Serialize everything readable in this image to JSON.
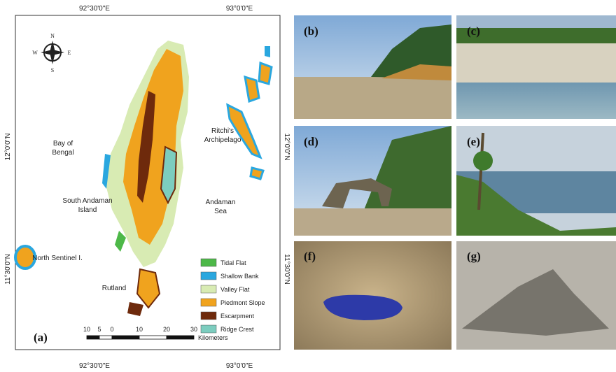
{
  "map": {
    "panel_label": "(a)",
    "coordinates": {
      "top": [
        "92°30'0\"E",
        "93°0'0\"E"
      ],
      "bottom": [
        "92°30'0\"E",
        "93°0'0\"E"
      ],
      "left": [
        "12°0'0\"N",
        "11°30'0\"N"
      ],
      "right": [
        "12°0'0\"N",
        "11°30'0\"N"
      ]
    },
    "compass": [
      "N",
      "S",
      "W",
      "E"
    ],
    "places": [
      [
        "Bay of",
        "Bengal"
      ],
      [
        "Ritchi's",
        "Archipelago"
      ],
      [
        "South Andaman",
        "Island"
      ],
      [
        "Andaman",
        "Sea"
      ],
      [
        "North Sentinel I."
      ],
      [
        "Rutland"
      ]
    ],
    "legend": [
      {
        "label": "Tidal Flat",
        "color": "#4db848"
      },
      {
        "label": "Shallow Bank",
        "color": "#2aa7df"
      },
      {
        "label": "Valley Flat",
        "color": "#d8ebb3"
      },
      {
        "label": "Piedmont Slope",
        "color": "#f0a31e"
      },
      {
        "label": "Escarpment",
        "color": "#6e2a0c"
      },
      {
        "label": "Ridge Crest",
        "color": "#7ccdbf"
      }
    ],
    "scale": {
      "ticks": [
        "10",
        "5",
        "0",
        "10",
        "20",
        "30"
      ],
      "unit": "Kilometers"
    }
  },
  "photos": [
    "(b)",
    "(c)",
    "(d)",
    "(e)",
    "(f)",
    "(g)"
  ]
}
